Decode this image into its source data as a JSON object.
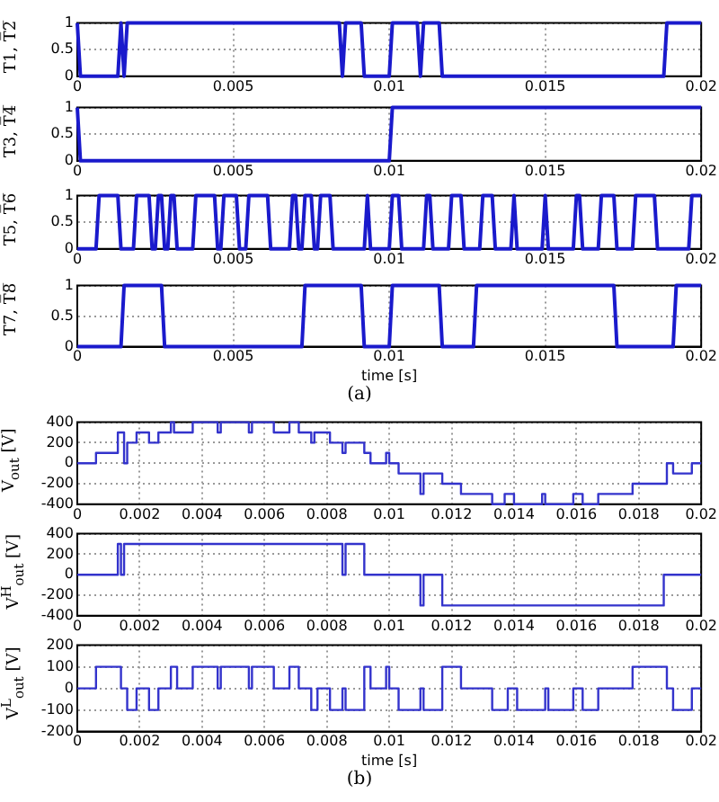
{
  "chart_data": [
    {
      "type": "line",
      "ylabel": "T1, T̅2̅",
      "xlim": [
        0,
        0.02
      ],
      "xticks": [
        0,
        0.005,
        0.01,
        0.015,
        0.02
      ],
      "ylim": [
        0,
        1
      ],
      "yticks": [
        0,
        0.5,
        1
      ],
      "grid": true,
      "marker": "none",
      "color": "#1a1acc",
      "x": [
        0,
        0.0001,
        0.0013,
        0.0014,
        0.0015,
        0.0016,
        0.0084,
        0.0085,
        0.0086,
        0.0091,
        0.0092,
        0.01,
        0.0101,
        0.0109,
        0.011,
        0.0111,
        0.0116,
        0.0117,
        0.0188,
        0.0189,
        0.02
      ],
      "values": [
        1,
        0,
        0,
        1,
        0,
        1,
        1,
        0,
        1,
        1,
        0,
        0,
        1,
        1,
        0,
        1,
        1,
        0,
        0,
        1,
        1
      ]
    },
    {
      "type": "line",
      "ylabel": "T3, T̅4̅",
      "xlim": [
        0,
        0.02
      ],
      "xticks": [
        0,
        0.005,
        0.01,
        0.015,
        0.02
      ],
      "ylim": [
        0,
        1
      ],
      "yticks": [
        0,
        0.5,
        1
      ],
      "grid": true,
      "marker": "none",
      "color": "#1a1acc",
      "x": [
        0,
        0.0001,
        0.01,
        0.0101,
        0.02
      ],
      "values": [
        1,
        0,
        0,
        1,
        1
      ]
    },
    {
      "type": "line",
      "ylabel": "T5, T̅6̅",
      "xlim": [
        0,
        0.02
      ],
      "xticks": [
        0,
        0.005,
        0.01,
        0.015,
        0.02
      ],
      "ylim": [
        0,
        1
      ],
      "yticks": [
        0,
        0.5,
        1
      ],
      "grid": true,
      "marker": "none",
      "color": "#1a1acc",
      "x": [
        0,
        0.0006,
        0.0007,
        0.0013,
        0.0014,
        0.0018,
        0.0019,
        0.0023,
        0.0024,
        0.0025,
        0.0026,
        0.0027,
        0.0028,
        0.0029,
        0.003,
        0.0031,
        0.0032,
        0.0037,
        0.0038,
        0.0044,
        0.0045,
        0.0046,
        0.0047,
        0.0051,
        0.0052,
        0.0054,
        0.0055,
        0.0061,
        0.0062,
        0.0068,
        0.0069,
        0.007,
        0.0071,
        0.0072,
        0.0073,
        0.0075,
        0.0076,
        0.0077,
        0.0078,
        0.0081,
        0.0082,
        0.0092,
        0.0093,
        0.0094,
        0.01,
        0.0101,
        0.0103,
        0.0104,
        0.0111,
        0.0112,
        0.0113,
        0.0114,
        0.0119,
        0.012,
        0.0123,
        0.0124,
        0.0129,
        0.013,
        0.0133,
        0.0134,
        0.0139,
        0.014,
        0.0141,
        0.0149,
        0.015,
        0.0151,
        0.0159,
        0.016,
        0.0161,
        0.0162,
        0.0167,
        0.0168,
        0.0172,
        0.0173,
        0.0178,
        0.0179,
        0.0185,
        0.0186,
        0.0196,
        0.0197,
        0.02
      ],
      "values": [
        0,
        0,
        1,
        1,
        0,
        0,
        1,
        1,
        0,
        0,
        1,
        1,
        0,
        0,
        1,
        1,
        0,
        0,
        1,
        1,
        0,
        0,
        1,
        1,
        0,
        0,
        1,
        1,
        0,
        0,
        1,
        1,
        0,
        0,
        1,
        1,
        0,
        0,
        1,
        1,
        0,
        0,
        1,
        0,
        0,
        1,
        1,
        0,
        0,
        1,
        1,
        0,
        0,
        1,
        1,
        0,
        0,
        1,
        1,
        0,
        0,
        1,
        0,
        0,
        1,
        0,
        0,
        1,
        1,
        0,
        0,
        1,
        1,
        0,
        0,
        1,
        1,
        0,
        0,
        1,
        1
      ]
    },
    {
      "type": "line",
      "ylabel": "T7, T̅8̅",
      "xlabel": "time [s]",
      "annotations": [
        "(a)"
      ],
      "xlim": [
        0,
        0.02
      ],
      "xticks": [
        0,
        0.005,
        0.01,
        0.015,
        0.02
      ],
      "ylim": [
        0,
        1
      ],
      "yticks": [
        0,
        0.5,
        1
      ],
      "grid": true,
      "marker": "none",
      "color": "#1a1acc",
      "x": [
        0,
        0.0014,
        0.0015,
        0.0027,
        0.0028,
        0.0072,
        0.0073,
        0.0091,
        0.0092,
        0.01,
        0.0101,
        0.0116,
        0.0117,
        0.0127,
        0.0128,
        0.0172,
        0.0173,
        0.0191,
        0.0192,
        0.02
      ],
      "values": [
        0,
        0,
        1,
        1,
        0,
        0,
        1,
        1,
        0,
        0,
        1,
        1,
        0,
        0,
        1,
        1,
        0,
        0,
        1,
        1
      ]
    },
    {
      "type": "step",
      "ylabel": "V$_{out}$ [V]",
      "xlim": [
        0,
        0.02
      ],
      "xticks": [
        0,
        0.002,
        0.004,
        0.006,
        0.008,
        0.01,
        0.012,
        0.014,
        0.016,
        0.018,
        0.02
      ],
      "ylim": [
        -400,
        400
      ],
      "yticks": [
        -400,
        -200,
        0,
        200,
        400
      ],
      "grid": true,
      "marker": "none",
      "color": "#3333cc",
      "x": [
        0,
        0.0006,
        0.0013,
        0.0015,
        0.0016,
        0.0019,
        0.0023,
        0.0026,
        0.003,
        0.0031,
        0.0037,
        0.0045,
        0.0046,
        0.0055,
        0.0056,
        0.0063,
        0.0068,
        0.0071,
        0.0075,
        0.0076,
        0.0081,
        0.0085,
        0.0086,
        0.0092,
        0.0094,
        0.0099,
        0.01,
        0.0103,
        0.011,
        0.0111,
        0.0117,
        0.0123,
        0.0133,
        0.0137,
        0.014,
        0.0149,
        0.015,
        0.0159,
        0.0162,
        0.0167,
        0.0178,
        0.0189,
        0.0191,
        0.0197,
        0.02
      ],
      "values": [
        0,
        100,
        300,
        0,
        200,
        300,
        200,
        300,
        400,
        300,
        400,
        300,
        400,
        300,
        400,
        300,
        400,
        300,
        200,
        300,
        200,
        100,
        200,
        100,
        0,
        100,
        0,
        -100,
        -300,
        -100,
        -200,
        -300,
        -400,
        -300,
        -400,
        -300,
        -400,
        -300,
        -400,
        -300,
        -200,
        0,
        -100,
        0,
        0
      ]
    },
    {
      "type": "step",
      "ylabel": "V$^{H}$$_{out}$ [V]",
      "xlim": [
        0,
        0.02
      ],
      "xticks": [
        0,
        0.002,
        0.004,
        0.006,
        0.008,
        0.01,
        0.012,
        0.014,
        0.016,
        0.018,
        0.02
      ],
      "ylim": [
        -400,
        400
      ],
      "yticks": [
        -400,
        -200,
        0,
        200,
        400
      ],
      "grid": true,
      "marker": "none",
      "color": "#3333cc",
      "x": [
        0,
        0.0013,
        0.0014,
        0.0015,
        0.0085,
        0.0086,
        0.0092,
        0.011,
        0.0111,
        0.0117,
        0.0188,
        0.02
      ],
      "values": [
        0,
        300,
        0,
        300,
        0,
        300,
        0,
        -300,
        0,
        -300,
        0,
        0
      ]
    },
    {
      "type": "step",
      "ylabel": "V$^{L}$$_{out}$ [V]",
      "xlabel": "time [s]",
      "annotations": [
        "(b)"
      ],
      "xlim": [
        0,
        0.02
      ],
      "xticks": [
        0,
        0.002,
        0.004,
        0.006,
        0.008,
        0.01,
        0.012,
        0.014,
        0.016,
        0.018,
        0.02
      ],
      "ylim": [
        -200,
        200
      ],
      "yticks": [
        -200,
        -100,
        0,
        100,
        200
      ],
      "grid": true,
      "marker": "none",
      "color": "#3333cc",
      "x": [
        0,
        0.0006,
        0.0014,
        0.0016,
        0.0019,
        0.0023,
        0.0026,
        0.003,
        0.0032,
        0.0037,
        0.0045,
        0.0046,
        0.0055,
        0.0056,
        0.0063,
        0.0068,
        0.0071,
        0.0075,
        0.0077,
        0.0081,
        0.0085,
        0.0086,
        0.0092,
        0.0094,
        0.0099,
        0.01,
        0.0103,
        0.011,
        0.0111,
        0.0117,
        0.0123,
        0.0133,
        0.0138,
        0.0141,
        0.015,
        0.0151,
        0.0159,
        0.0162,
        0.0167,
        0.0178,
        0.0189,
        0.0191,
        0.0197,
        0.02
      ],
      "values": [
        0,
        100,
        0,
        -100,
        0,
        -100,
        0,
        100,
        0,
        100,
        0,
        100,
        0,
        100,
        0,
        100,
        0,
        -100,
        0,
        -100,
        0,
        -100,
        100,
        0,
        100,
        0,
        -100,
        0,
        -100,
        100,
        0,
        -100,
        0,
        -100,
        0,
        -100,
        0,
        -100,
        0,
        100,
        0,
        -100,
        0,
        0
      ]
    }
  ]
}
